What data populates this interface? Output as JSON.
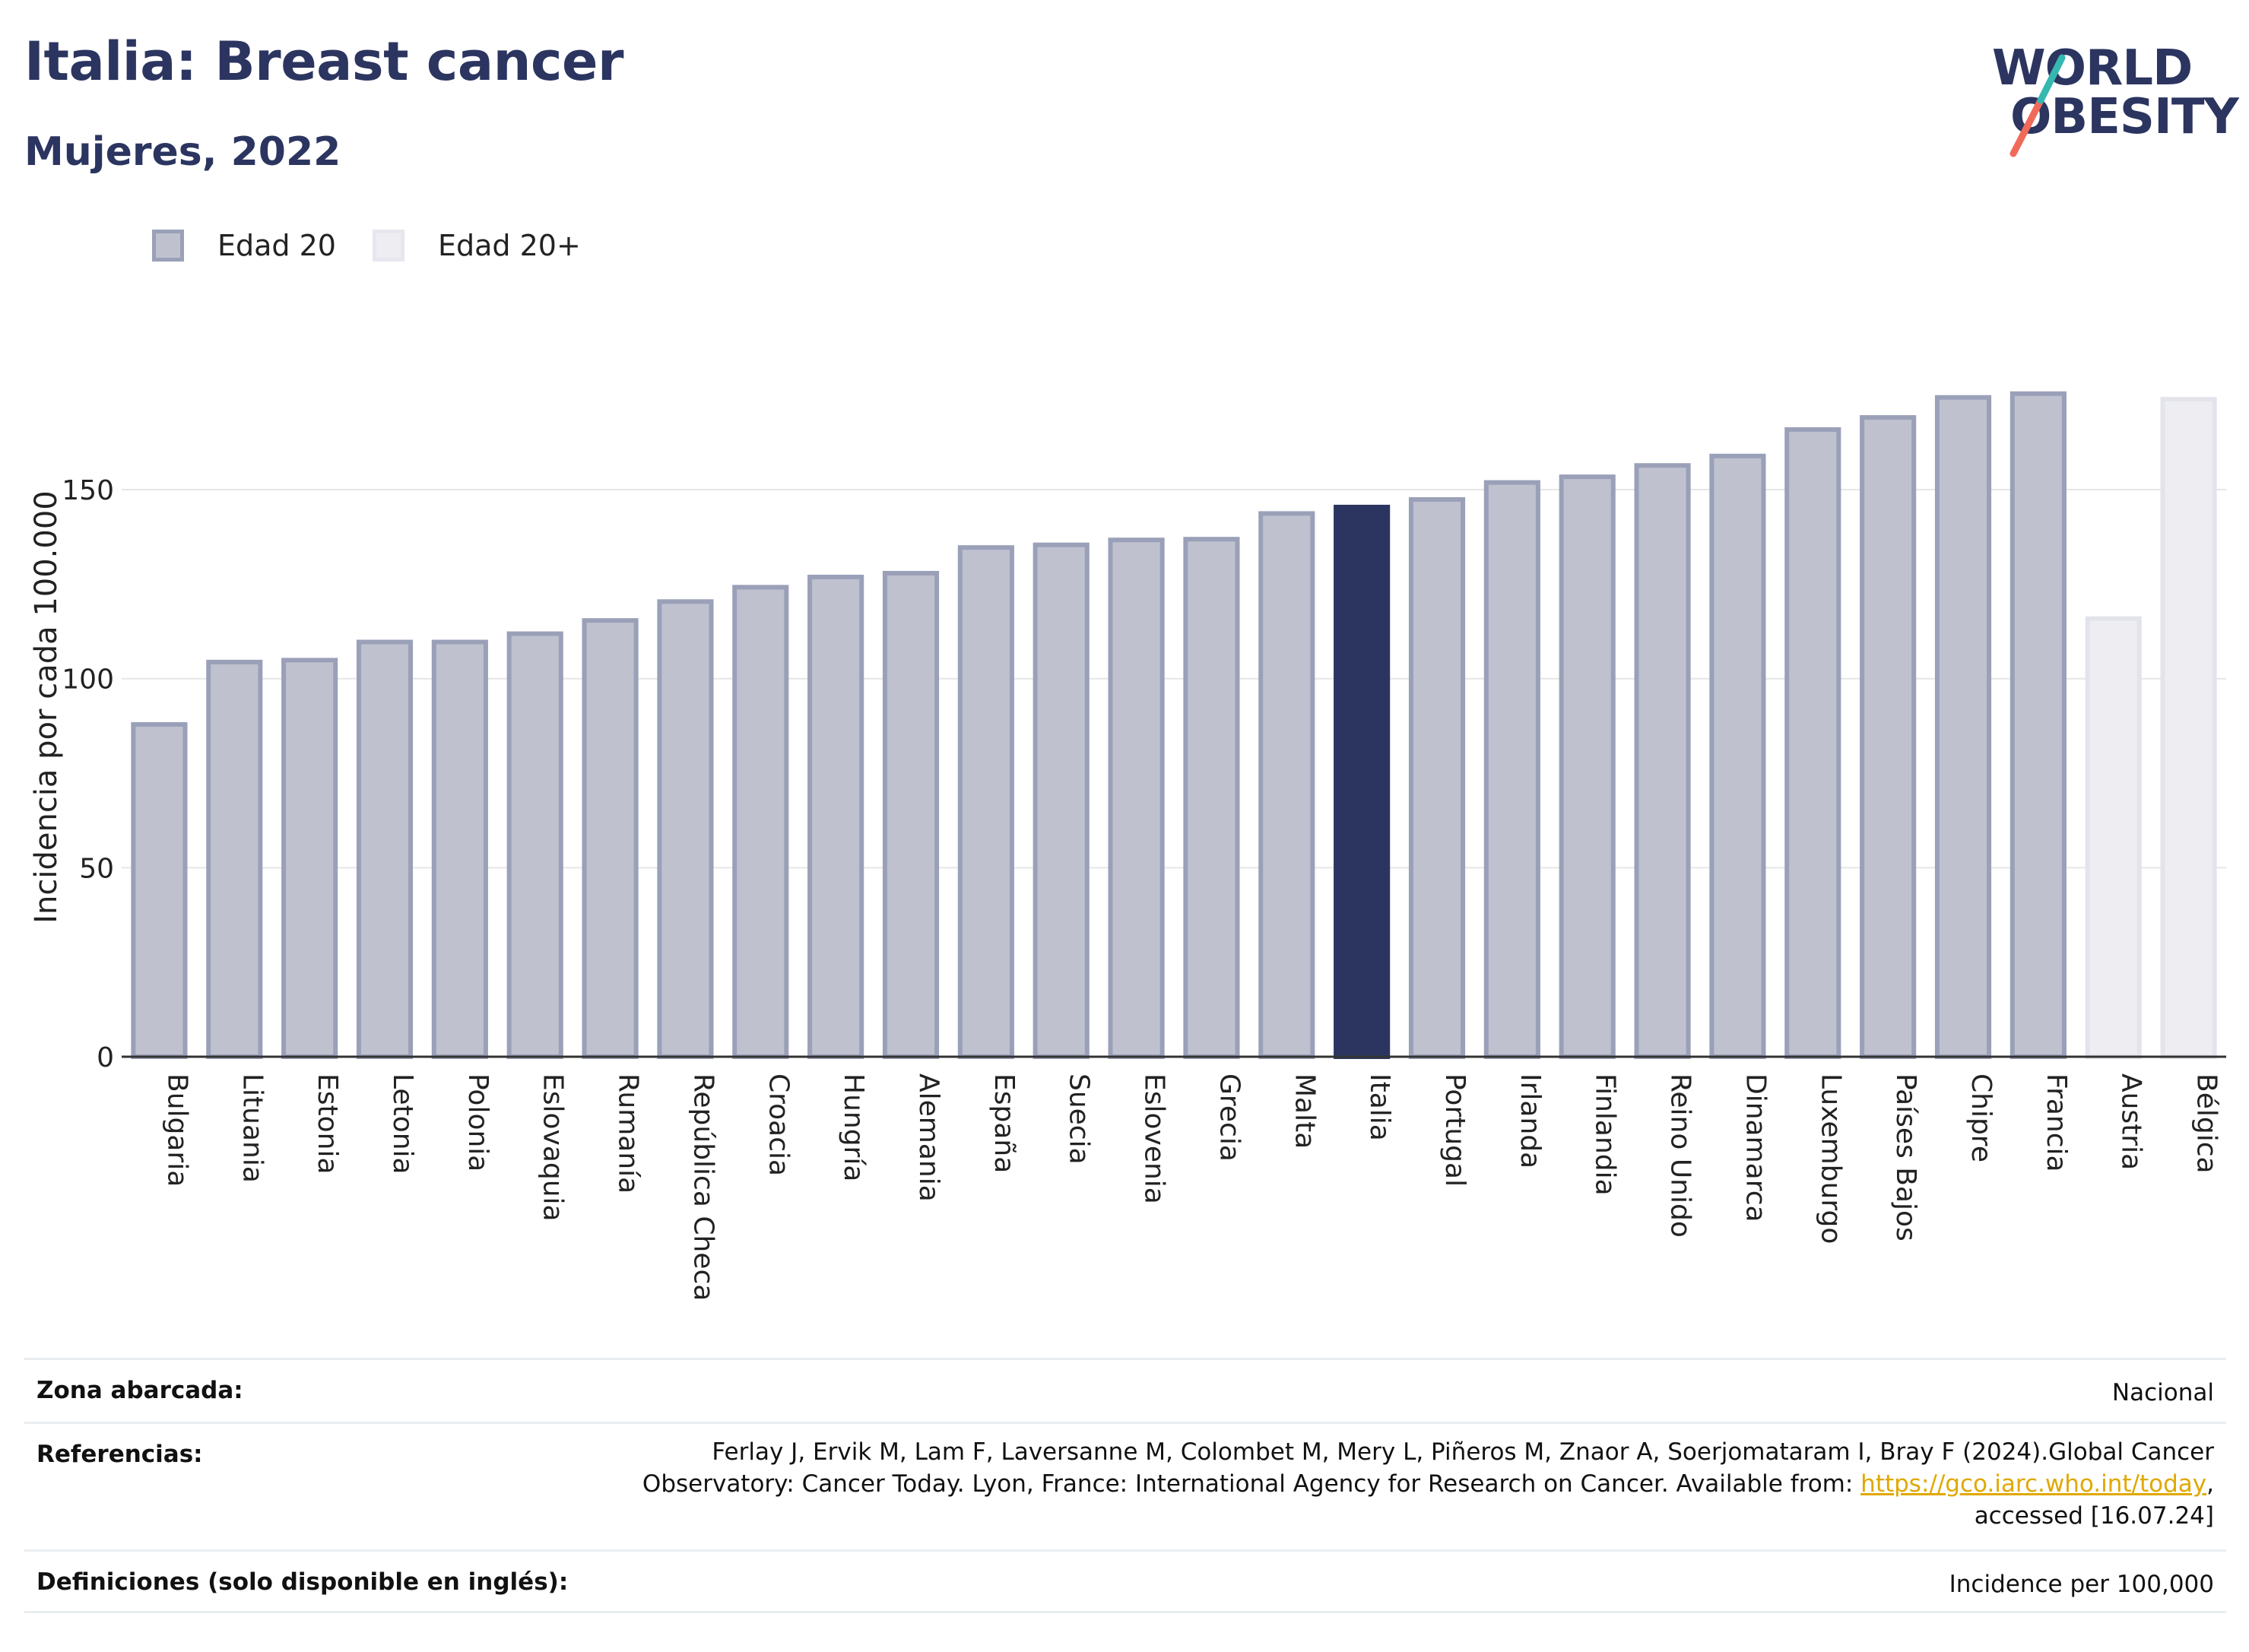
{
  "header": {
    "title": "Italia: Breast cancer",
    "subtitle": "Mujeres, 2022",
    "logo_line1": "WORLD",
    "logo_line2": "OBESITY"
  },
  "legend": {
    "items": [
      {
        "label": "Edad 20",
        "style": "mid"
      },
      {
        "label": "Edad 20+",
        "style": "light"
      }
    ]
  },
  "colors": {
    "bar_fill": "#bfc1cf",
    "bar_stroke": "#9aa0b8",
    "highlight": "#2b3560",
    "light_fill": "#eeeef2",
    "light_stroke": "#e3e4eb",
    "grid": "#e6e6e6",
    "axis": "#333333",
    "link": "#e0a800"
  },
  "chart_data": {
    "type": "bar",
    "title": "Italia: Breast cancer",
    "subtitle": "Mujeres, 2022",
    "ylabel": "Incidencia por cada 100.000",
    "xlabel": "",
    "ylim": [
      0,
      185
    ],
    "yticks": [
      0,
      50,
      100,
      150
    ],
    "grid": true,
    "legend_position": "top-left",
    "categories": [
      "Bulgaria",
      "Lituania",
      "Estonia",
      "Letonia",
      "Polonia",
      "Eslovaquia",
      "Rumanía",
      "República Checa",
      "Croacia",
      "Hungría",
      "Alemania",
      "España",
      "Suecia",
      "Eslovenia",
      "Grecia",
      "Malta",
      "Italia",
      "Portugal",
      "Irlanda",
      "Finlandia",
      "Reino Unido",
      "Dinamarca",
      "Luxemburgo",
      "Países Bajos",
      "Chipre",
      "Francia",
      "Austria",
      "Bélgica"
    ],
    "values": [
      88.5,
      105.0,
      105.5,
      110.3,
      110.3,
      112.5,
      116.0,
      121.0,
      124.8,
      127.5,
      128.5,
      135.3,
      136.0,
      137.3,
      137.5,
      144.3,
      146.0,
      148.0,
      152.5,
      154.0,
      157.0,
      159.5,
      166.5,
      169.7,
      175.0,
      176.0,
      116.5,
      174.5
    ],
    "groups": [
      "Edad 20",
      "Edad 20",
      "Edad 20",
      "Edad 20",
      "Edad 20",
      "Edad 20",
      "Edad 20",
      "Edad 20",
      "Edad 20",
      "Edad 20",
      "Edad 20",
      "Edad 20",
      "Edad 20",
      "Edad 20",
      "Edad 20",
      "Edad 20",
      "Edad 20",
      "Edad 20",
      "Edad 20",
      "Edad 20",
      "Edad 20",
      "Edad 20",
      "Edad 20",
      "Edad 20",
      "Edad 20",
      "Edad 20",
      "Edad 20+",
      "Edad 20+"
    ],
    "highlight": "Italia"
  },
  "footer": {
    "rows": [
      {
        "label": "Zona abarcada:",
        "value": "Nacional"
      },
      {
        "label": "Referencias:",
        "value_lines": [
          "Ferlay J, Ervik M, Lam F, Laversanne M, Colombet M, Mery L, Piñeros M, Znaor A, Soerjomataram I, Bray F (2024).Global Cancer",
          "Observatory: Cancer Today. Lyon, France: International Agency for Research on Cancer. Available from: ",
          "accessed [16.07.24]"
        ],
        "link": "https://gco.iarc.who.int/today",
        "link_suffix": ","
      },
      {
        "label": "Definiciones (solo disponible en inglés):",
        "value": "Incidence per 100,000"
      }
    ]
  }
}
